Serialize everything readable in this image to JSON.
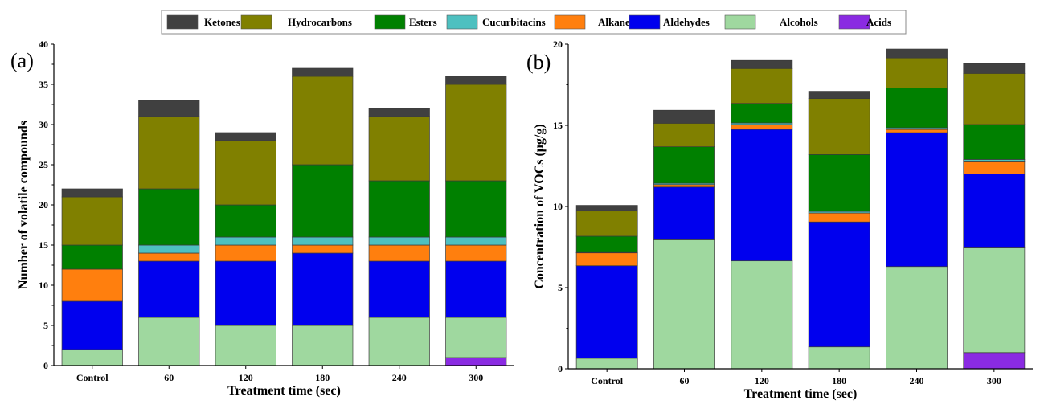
{
  "legend": [
    {
      "name": "Ketones",
      "color": "#404040"
    },
    {
      "name": "Hydrocarbons",
      "color": "#808000"
    },
    {
      "name": "Esters",
      "color": "#008000"
    },
    {
      "name": "Cucurbitacins",
      "color": "#4ec0c0"
    },
    {
      "name": "Alkanes",
      "color": "#ff7f0e"
    },
    {
      "name": "Aldehydes",
      "color": "#0000ee"
    },
    {
      "name": "Alcohols",
      "color": "#9fd89f"
    },
    {
      "name": "Acids",
      "color": "#8a2be2"
    }
  ],
  "chart_data": [
    {
      "type": "bar",
      "stacked": true,
      "panel_label": "(a)",
      "xlabel": "Treatment time (sec)",
      "ylabel": "Number of volatile compounds",
      "ylim": [
        0,
        40
      ],
      "yticks": [
        "0",
        "5",
        "10",
        "15",
        "20",
        "25",
        "30",
        "35",
        "40"
      ],
      "categories": [
        "Control",
        "60",
        "120",
        "180",
        "240",
        "300"
      ],
      "series": [
        {
          "name": "Acids",
          "values": [
            0,
            0,
            0,
            0,
            0,
            1
          ]
        },
        {
          "name": "Alcohols",
          "values": [
            2,
            6,
            5,
            5,
            6,
            5
          ]
        },
        {
          "name": "Aldehydes",
          "values": [
            6,
            7,
            8,
            9,
            7,
            7
          ]
        },
        {
          "name": "Alkanes",
          "values": [
            4,
            1,
            2,
            1,
            2,
            2
          ]
        },
        {
          "name": "Cucurbitacins",
          "values": [
            0,
            1,
            1,
            1,
            1,
            1
          ]
        },
        {
          "name": "Esters",
          "values": [
            3,
            7,
            4,
            9,
            7,
            7
          ]
        },
        {
          "name": "Hydrocarbons",
          "values": [
            6,
            9,
            8,
            11,
            8,
            12
          ]
        },
        {
          "name": "Ketones",
          "values": [
            1,
            2,
            1,
            1,
            1,
            1
          ]
        }
      ]
    },
    {
      "type": "bar",
      "stacked": true,
      "panel_label": "(b)",
      "xlabel": "Treatment time (sec)",
      "ylabel": "Concentration of VOCs (μg/g)",
      "ylim": [
        0,
        20
      ],
      "yticks": [
        "0",
        "5",
        "10",
        "15",
        "20"
      ],
      "categories": [
        "Control",
        "60",
        "120",
        "180",
        "240",
        "300"
      ],
      "series": [
        {
          "name": "Acids",
          "values": [
            0,
            0,
            0,
            0,
            0,
            1.0
          ]
        },
        {
          "name": "Alcohols",
          "values": [
            0.65,
            7.95,
            6.65,
            1.35,
            6.3,
            6.45
          ]
        },
        {
          "name": "Aldehydes",
          "values": [
            5.7,
            3.25,
            8.1,
            7.7,
            8.25,
            4.55
          ]
        },
        {
          "name": "Alkanes",
          "values": [
            0.8,
            0.15,
            0.3,
            0.55,
            0.2,
            0.75
          ]
        },
        {
          "name": "Cucurbitacins",
          "values": [
            0.02,
            0.08,
            0.1,
            0.1,
            0.1,
            0.15
          ]
        },
        {
          "name": "Esters",
          "values": [
            1.0,
            2.25,
            1.2,
            3.5,
            2.45,
            2.15
          ]
        },
        {
          "name": "Hydrocarbons",
          "values": [
            1.55,
            1.45,
            2.15,
            3.45,
            1.85,
            3.15
          ]
        },
        {
          "name": "Ketones",
          "values": [
            0.35,
            0.8,
            0.5,
            0.45,
            0.55,
            0.6
          ]
        }
      ]
    }
  ]
}
